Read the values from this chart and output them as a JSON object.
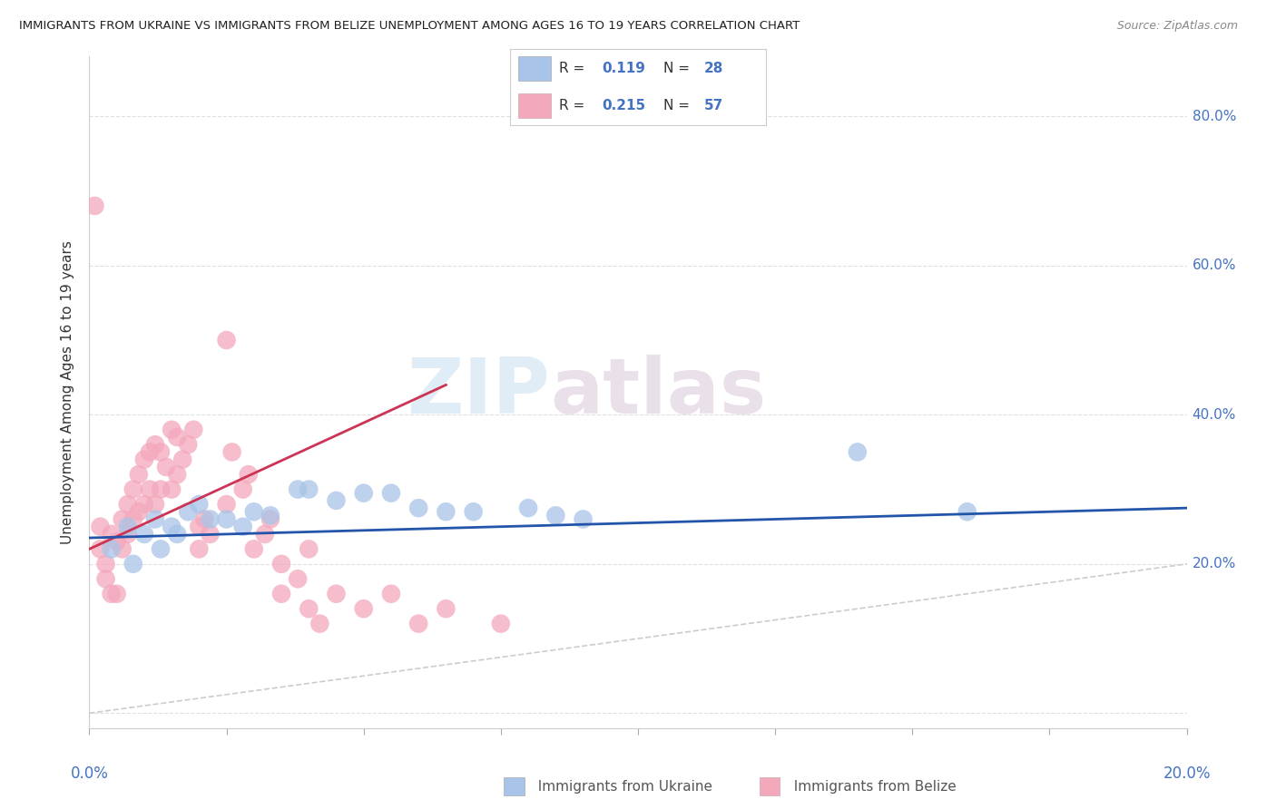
{
  "title": "IMMIGRANTS FROM UKRAINE VS IMMIGRANTS FROM BELIZE UNEMPLOYMENT AMONG AGES 16 TO 19 YEARS CORRELATION CHART",
  "source": "Source: ZipAtlas.com",
  "ylabel": "Unemployment Among Ages 16 to 19 years",
  "xlim": [
    0.0,
    0.2
  ],
  "ylim": [
    -0.02,
    0.88
  ],
  "yticks": [
    0.0,
    0.2,
    0.4,
    0.6,
    0.8
  ],
  "ukraine_R": "0.119",
  "ukraine_N": "28",
  "belize_R": "0.215",
  "belize_N": "57",
  "ukraine_color": "#a8c4e8",
  "belize_color": "#f4a8bc",
  "ukraine_line_color": "#2255aa",
  "belize_line_color": "#cc3355",
  "diagonal_color": "#cccccc",
  "watermark_zip": "ZIP",
  "watermark_atlas": "atlas",
  "ukraine_x": [
    0.004,
    0.007,
    0.008,
    0.01,
    0.012,
    0.013,
    0.015,
    0.016,
    0.018,
    0.02,
    0.022,
    0.025,
    0.028,
    0.03,
    0.033,
    0.038,
    0.04,
    0.045,
    0.05,
    0.055,
    0.06,
    0.065,
    0.07,
    0.08,
    0.085,
    0.09,
    0.14,
    0.16
  ],
  "ukraine_y": [
    0.22,
    0.25,
    0.2,
    0.24,
    0.26,
    0.22,
    0.25,
    0.24,
    0.27,
    0.28,
    0.26,
    0.26,
    0.25,
    0.27,
    0.265,
    0.3,
    0.3,
    0.285,
    0.295,
    0.295,
    0.275,
    0.27,
    0.27,
    0.275,
    0.265,
    0.26,
    0.35,
    0.27
  ],
  "belize_x": [
    0.001,
    0.002,
    0.002,
    0.003,
    0.003,
    0.004,
    0.004,
    0.005,
    0.005,
    0.006,
    0.006,
    0.007,
    0.007,
    0.008,
    0.008,
    0.009,
    0.009,
    0.01,
    0.01,
    0.011,
    0.011,
    0.012,
    0.012,
    0.013,
    0.013,
    0.014,
    0.015,
    0.015,
    0.016,
    0.016,
    0.017,
    0.018,
    0.019,
    0.02,
    0.02,
    0.021,
    0.022,
    0.025,
    0.025,
    0.026,
    0.028,
    0.029,
    0.03,
    0.032,
    0.033,
    0.035,
    0.035,
    0.038,
    0.04,
    0.04,
    0.042,
    0.045,
    0.05,
    0.055,
    0.06,
    0.065,
    0.075
  ],
  "belize_y": [
    0.68,
    0.25,
    0.22,
    0.2,
    0.18,
    0.24,
    0.16,
    0.23,
    0.16,
    0.26,
    0.22,
    0.28,
    0.24,
    0.3,
    0.26,
    0.32,
    0.27,
    0.34,
    0.28,
    0.35,
    0.3,
    0.36,
    0.28,
    0.35,
    0.3,
    0.33,
    0.38,
    0.3,
    0.37,
    0.32,
    0.34,
    0.36,
    0.38,
    0.25,
    0.22,
    0.26,
    0.24,
    0.5,
    0.28,
    0.35,
    0.3,
    0.32,
    0.22,
    0.24,
    0.26,
    0.2,
    0.16,
    0.18,
    0.14,
    0.22,
    0.12,
    0.16,
    0.14,
    0.16,
    0.12,
    0.14,
    0.12
  ],
  "belize_trend_x": [
    0.0,
    0.065
  ],
  "belize_trend_y": [
    0.22,
    0.44
  ],
  "ukraine_trend_x": [
    0.0,
    0.2
  ],
  "ukraine_trend_y": [
    0.235,
    0.275
  ]
}
